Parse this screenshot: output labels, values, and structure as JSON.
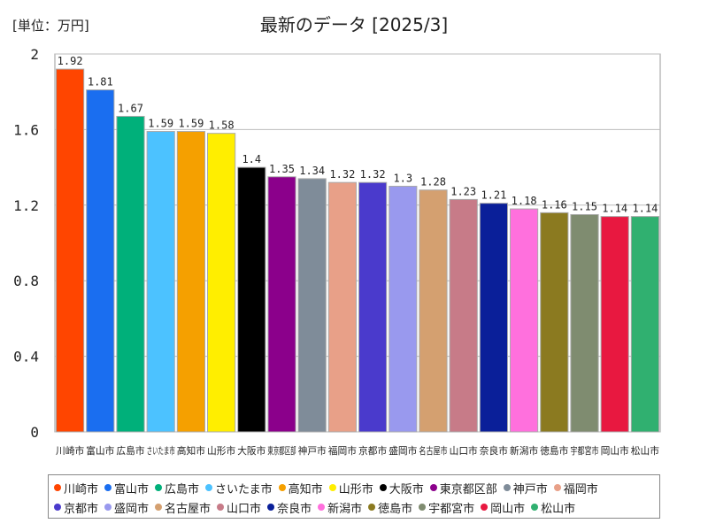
{
  "chart_data": {
    "type": "bar",
    "title": "最新のデータ [2025/3]",
    "unit_label": "[単位：万円]",
    "ylim": [
      0,
      2
    ],
    "yticks": [
      "0",
      "0.4",
      "0.8",
      "1.2",
      "1.6",
      "2"
    ],
    "ytick_values": [
      0,
      0.4,
      0.8,
      1.2,
      1.6,
      2
    ],
    "categories": [
      "川崎市",
      "富山市",
      "広島市",
      "さいたま市",
      "高知市",
      "山形市",
      "大阪市",
      "東京都区部",
      "神戸市",
      "福岡市",
      "京都市",
      "盛岡市",
      "名古屋市",
      "山口市",
      "奈良市",
      "新潟市",
      "徳島市",
      "宇都宮市",
      "岡山市",
      "松山市"
    ],
    "values": [
      1.92,
      1.81,
      1.67,
      1.59,
      1.59,
      1.58,
      1.4,
      1.35,
      1.34,
      1.32,
      1.32,
      1.3,
      1.28,
      1.23,
      1.21,
      1.18,
      1.16,
      1.15,
      1.14,
      1.14
    ],
    "value_labels": [
      "1.92",
      "1.81",
      "1.67",
      "1.59",
      "1.59",
      "1.58",
      "1.4",
      "1.35",
      "1.34",
      "1.32",
      "1.32",
      "1.3",
      "1.28",
      "1.23",
      "1.21",
      "1.18",
      "1.16",
      "1.15",
      "1.14",
      "1.14"
    ],
    "colors": [
      "#ff4500",
      "#1a6ef0",
      "#00b07a",
      "#4cc2ff",
      "#f5a000",
      "#ffee00",
      "#000000",
      "#8b008b",
      "#7f8c99",
      "#e8a088",
      "#4a3acc",
      "#9999ee",
      "#d4a070",
      "#c77b88",
      "#0a1f99",
      "#ff70dd",
      "#8b7a20",
      "#7f8c70",
      "#e81840",
      "#30b070"
    ],
    "grid": true,
    "legend": "bottom"
  }
}
